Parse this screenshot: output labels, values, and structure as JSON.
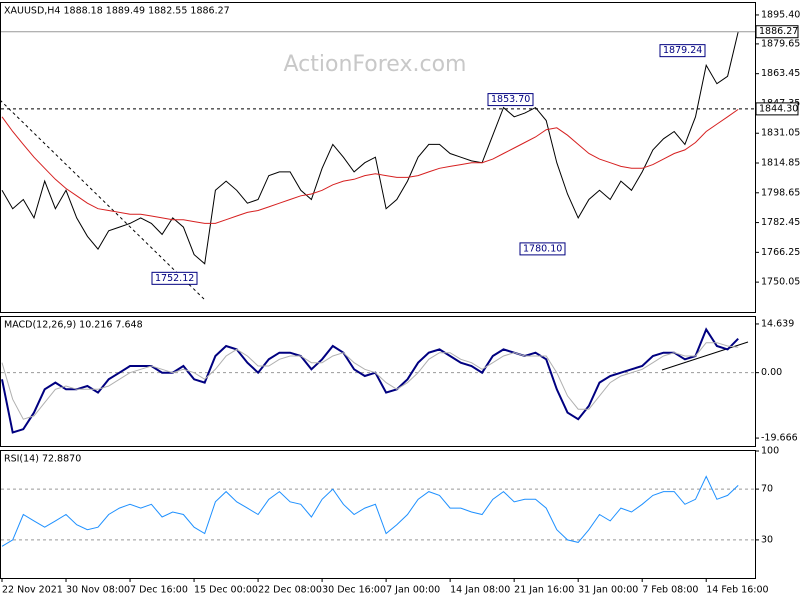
{
  "chart_data": [
    {
      "type": "line",
      "title": "XAUUSD,H4 1888.18 1889.49 1882.55 1886.27",
      "watermark": "ActionForex.com",
      "categories": [
        "22 Nov 2021",
        null,
        null,
        null,
        null,
        null,
        "30 Nov 08:00",
        null,
        null,
        null,
        null,
        null,
        "7 Dec 16:00",
        null,
        null,
        null,
        null,
        null,
        "15 Dec 00:00",
        null,
        null,
        null,
        null,
        null,
        "22 Dec 08:00",
        null,
        null,
        null,
        null,
        null,
        "30 Dec 16:00",
        null,
        null,
        null,
        null,
        null,
        "7 Jan 00:00",
        null,
        null,
        null,
        null,
        null,
        "14 Jan 08:00",
        null,
        null,
        null,
        null,
        null,
        "21 Jan 16:00",
        null,
        null,
        null,
        null,
        null,
        "31 Jan 00:00",
        null,
        null,
        null,
        null,
        null,
        "7 Feb 08:00",
        null,
        null,
        null,
        null,
        null,
        "14 Feb 16:00",
        null,
        null,
        null
      ],
      "series": [
        {
          "color": "#000000",
          "values": [
            1800,
            1790,
            1795,
            1785,
            1805,
            1790,
            1800,
            1785,
            1775,
            1768,
            1778,
            1780,
            1782,
            1785,
            1782,
            1776,
            1785,
            1780,
            1765,
            1760,
            1800,
            1805,
            1800,
            1793,
            1795,
            1808,
            1810,
            1810,
            1800,
            1795,
            1812,
            1825,
            1818,
            1810,
            1815,
            1818,
            1790,
            1795,
            1805,
            1818,
            1825,
            1825,
            1820,
            1818,
            1816,
            1815,
            1830,
            1845,
            1840,
            1842,
            1845,
            1838,
            1815,
            1798,
            1785,
            1795,
            1800,
            1795,
            1805,
            1800,
            1810,
            1822,
            1828,
            1832,
            1825,
            1840,
            1868,
            1858,
            1862,
            1886.27
          ]
        },
        {
          "color": "#d62020",
          "values": [
            1840,
            1832,
            1825,
            1818,
            1812,
            1806,
            1801,
            1797,
            1793,
            1790,
            1789,
            1788,
            1787,
            1787,
            1786,
            1785,
            1784,
            1784,
            1783,
            1782,
            1782,
            1784,
            1786,
            1788,
            1789,
            1791,
            1793,
            1795,
            1797,
            1798,
            1800,
            1803,
            1805,
            1806,
            1808,
            1809,
            1808,
            1807,
            1807,
            1808,
            1810,
            1812,
            1813,
            1814,
            1815,
            1815,
            1817,
            1820,
            1823,
            1826,
            1829,
            1833,
            1834,
            1830,
            1825,
            1820,
            1817,
            1815,
            1813,
            1812,
            1812,
            1814,
            1817,
            1820,
            1822,
            1826,
            1832,
            1836,
            1840,
            1844
          ]
        }
      ],
      "ylim": [
        1733.8,
        1901.9
      ],
      "yticks": [
        {
          "value": 1895.4,
          "label": "1895.40"
        },
        1879.65,
        1863.45,
        1847.35,
        1831.05,
        1814.85,
        1798.65,
        1782.45,
        1766.25,
        1750.05
      ],
      "price_lines": [
        {
          "value": 1844.3,
          "label": "1844.30"
        },
        {
          "value": 1886.27,
          "label": "1886.27"
        }
      ],
      "annotations": [
        {
          "value": 1752.12,
          "label": "1752.12"
        },
        {
          "value": 1853.7,
          "label": "1853.70"
        },
        {
          "value": 1780.1,
          "label": "1780.10"
        },
        {
          "value": 1879.24,
          "label": "1879.24"
        }
      ]
    },
    {
      "type": "line",
      "title": "MACD(12,26,9) 10.216 7.648",
      "series": [
        {
          "color": "#000080",
          "values": [
            -2,
            -18,
            -17,
            -12,
            -5,
            -3,
            -5,
            -5,
            -4,
            -6,
            -2,
            0,
            2,
            2,
            2,
            0,
            0,
            2,
            -2,
            -3,
            5,
            8,
            7,
            3,
            0,
            4,
            6,
            6,
            5,
            1,
            4,
            8,
            6,
            1,
            -1,
            0,
            -6,
            -5,
            -2,
            3,
            6,
            7,
            5,
            3,
            2,
            0,
            5,
            7,
            6,
            5,
            6,
            4,
            -5,
            -12,
            -14,
            -10,
            -3,
            -1,
            0,
            1,
            2,
            5,
            6,
            6,
            4,
            5,
            13,
            8,
            7,
            10.216
          ]
        },
        {
          "color": "#b0b0b0",
          "values": [
            3,
            -8,
            -14,
            -13,
            -9,
            -5,
            -4,
            -5,
            -5,
            -5,
            -4,
            -2,
            0,
            1,
            2,
            1,
            0,
            1,
            0,
            -2,
            1,
            5,
            7,
            5,
            2,
            2,
            4,
            5,
            5,
            3,
            3,
            5,
            6,
            3,
            1,
            0,
            -3,
            -5,
            -3,
            0,
            4,
            6,
            6,
            4,
            3,
            1,
            3,
            5,
            6,
            5,
            5,
            5,
            0,
            -7,
            -11,
            -11,
            -7,
            -3,
            -1,
            0,
            1,
            3,
            5,
            6,
            5,
            5,
            9,
            9,
            8,
            7.648
          ]
        }
      ],
      "ylim": [
        -22.05,
        16.73
      ],
      "yticks": [
        14.639,
        {
          "value": 0,
          "label": "0.00"
        },
        -19.666
      ],
      "levels": [
        0
      ]
    },
    {
      "type": "line",
      "title": "RSI(14) 72.8870",
      "series": [
        {
          "color": "#1e90ff",
          "values": [
            25,
            30,
            50,
            45,
            40,
            45,
            50,
            42,
            38,
            40,
            50,
            55,
            58,
            55,
            58,
            48,
            52,
            50,
            40,
            35,
            60,
            68,
            60,
            55,
            50,
            62,
            68,
            60,
            58,
            48,
            62,
            70,
            58,
            50,
            55,
            58,
            35,
            42,
            50,
            62,
            68,
            65,
            55,
            55,
            52,
            50,
            62,
            68,
            60,
            62,
            62,
            55,
            38,
            30,
            28,
            38,
            50,
            45,
            55,
            52,
            58,
            65,
            68,
            68,
            58,
            62,
            80,
            62,
            65,
            72.887
          ]
        }
      ],
      "ylim": [
        0,
        100
      ],
      "yticks": [
        100,
        70,
        30
      ],
      "levels": [
        70,
        30
      ]
    }
  ]
}
